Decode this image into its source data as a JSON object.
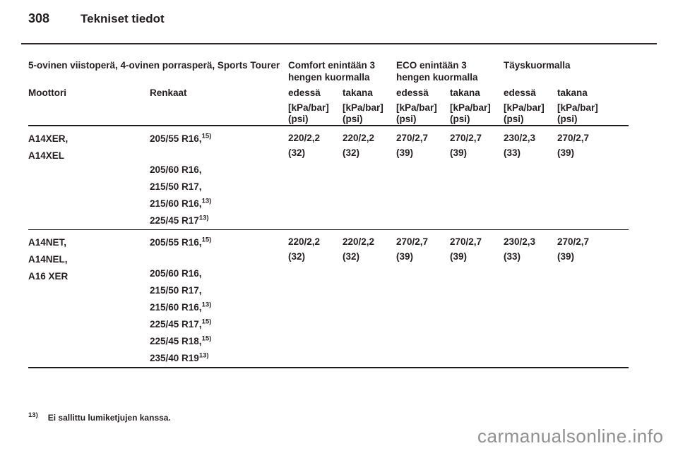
{
  "page": {
    "number": "308",
    "title": "Tekniset tiedot",
    "watermark": "carmanualsonline.info",
    "footnote": {
      "marker": "13)",
      "text": "Ei sallittu lumiketjujen kanssa."
    }
  },
  "table": {
    "group_headers": {
      "body_style": "5-ovinen viistoperä, 4-ovinen porrasperä, Sports Tourer",
      "comfort": "Comfort enintään 3 hengen kuormalla",
      "eco": "ECO enintään 3 hengen kuormalla",
      "full_load": "Täyskuormalla"
    },
    "column_headers": {
      "engine": "Moottori",
      "tyres": "Renkaat",
      "front": "edessä",
      "rear": "takana",
      "unit_line1": "[kPa/bar]",
      "unit_line2": "(psi)"
    },
    "rows": [
      {
        "engines": [
          "A14XER,",
          "A14XEL"
        ],
        "tyres": [
          {
            "t": "205/55 R16,",
            "s": "15)"
          },
          {
            "t": "205/60 R16,",
            "s": ""
          },
          {
            "t": "215/50 R17,",
            "s": ""
          },
          {
            "t": "215/60 R16,",
            "s": "13)"
          },
          {
            "t": "225/45 R17",
            "s": "13)"
          }
        ],
        "values": [
          {
            "kpa": "220/2,2",
            "psi": "(32)"
          },
          {
            "kpa": "220/2,2",
            "psi": "(32)"
          },
          {
            "kpa": "270/2,7",
            "psi": "(39)"
          },
          {
            "kpa": "270/2,7",
            "psi": "(39)"
          },
          {
            "kpa": "230/2,3",
            "psi": "(33)"
          },
          {
            "kpa": "270/2,7",
            "psi": "(39)"
          }
        ]
      },
      {
        "engines": [
          "A14NET,",
          "A14NEL,",
          "A16 XER"
        ],
        "tyres": [
          {
            "t": "205/55 R16,",
            "s": "15)"
          },
          {
            "t": "205/60 R16,",
            "s": ""
          },
          {
            "t": "215/50 R17,",
            "s": ""
          },
          {
            "t": "215/60 R16,",
            "s": "13)"
          },
          {
            "t": "225/45 R17,",
            "s": "15)"
          },
          {
            "t": "225/45 R18,",
            "s": "15)"
          },
          {
            "t": "235/40 R19",
            "s": "13)"
          }
        ],
        "values": [
          {
            "kpa": "220/2,2",
            "psi": "(32)"
          },
          {
            "kpa": "220/2,2",
            "psi": "(32)"
          },
          {
            "kpa": "270/2,7",
            "psi": "(39)"
          },
          {
            "kpa": "270/2,7",
            "psi": "(39)"
          },
          {
            "kpa": "230/2,3",
            "psi": "(33)"
          },
          {
            "kpa": "270/2,7",
            "psi": "(39)"
          }
        ]
      }
    ]
  }
}
